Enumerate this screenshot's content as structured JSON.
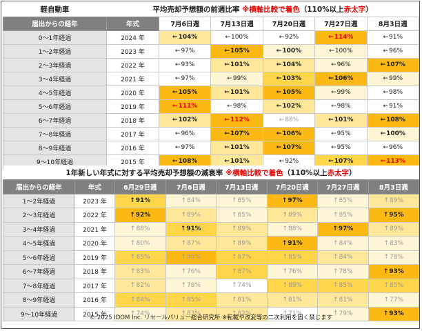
{
  "table1": {
    "title_main": "平均売却予想額の前週比率",
    "title_note": "※横軸比較で着色",
    "title_paren_open": "（110%以上",
    "title_red": "赤太字",
    "title_paren_close": "）",
    "corner_label": "軽自動車",
    "col_headers": [
      "届出からの経年",
      "年式"
    ],
    "weeks": [
      "7月6日週",
      "7月13日週",
      "7月20日週",
      "7月27日週",
      "8月3日週"
    ],
    "rows": [
      {
        "label": "0～1年経過",
        "year": "2024 年",
        "cells": [
          [
            "←",
            "104%",
            "c2",
            "b"
          ],
          [
            "←",
            "100%",
            "c0",
            ""
          ],
          [
            "←",
            "92%",
            "c0",
            ""
          ],
          [
            "←",
            "114%",
            "c4",
            "r"
          ],
          [
            "←",
            "91%",
            "c0",
            ""
          ]
        ]
      },
      {
        "label": "1～2年経過",
        "year": "2023 年",
        "cells": [
          [
            "←",
            "97%",
            "c0",
            ""
          ],
          [
            "←",
            "105%",
            "c4",
            "b"
          ],
          [
            "←",
            "100%",
            "c1",
            "b"
          ],
          [
            "←",
            "100%",
            "c1",
            ""
          ],
          [
            "←",
            "96%",
            "c0",
            ""
          ]
        ]
      },
      {
        "label": "2～3年経過",
        "year": "2022 年",
        "cells": [
          [
            "←",
            "93%",
            "c0",
            ""
          ],
          [
            "←",
            "101%",
            "c2",
            "b"
          ],
          [
            "←",
            "104%",
            "c2",
            "b"
          ],
          [
            "←",
            "96%",
            "c1",
            ""
          ],
          [
            "←",
            "107%",
            "c4",
            "b"
          ]
        ]
      },
      {
        "label": "3～4年経過",
        "year": "2021 年",
        "cells": [
          [
            "←",
            "97%",
            "c0",
            ""
          ],
          [
            "←",
            "99%",
            "c1",
            ""
          ],
          [
            "←",
            "103%",
            "c3",
            "b"
          ],
          [
            "←",
            "106%",
            "c4",
            "b"
          ],
          [
            "←",
            "99%",
            "c1",
            ""
          ]
        ]
      },
      {
        "label": "4～5年経過",
        "year": "2020 年",
        "cells": [
          [
            "←",
            "105%",
            "c4",
            "b"
          ],
          [
            "←",
            "101%",
            "c2",
            "b"
          ],
          [
            "←",
            "105%",
            "c4",
            "b"
          ],
          [
            "←",
            "99%",
            "c1",
            ""
          ],
          [
            "←",
            "98%",
            "c0",
            ""
          ]
        ]
      },
      {
        "label": "5～6年経過",
        "year": "2019 年",
        "cells": [
          [
            "←",
            "111%",
            "c4",
            "r"
          ],
          [
            "←",
            "98%",
            "c0",
            ""
          ],
          [
            "←",
            "102%",
            "c2",
            "b"
          ],
          [
            "←",
            "98%",
            "c0",
            ""
          ],
          [
            "←",
            "91%",
            "c0",
            ""
          ]
        ]
      },
      {
        "label": "6～7年経過",
        "year": "2018 年",
        "cells": [
          [
            "←",
            "102%",
            "c2",
            "b"
          ],
          [
            "←",
            "112%",
            "c4",
            "r"
          ],
          [
            "←",
            "88%",
            "c0",
            "g"
          ],
          [
            "←",
            "101%",
            "c2",
            "b"
          ],
          [
            "←",
            "108%",
            "c4",
            "b"
          ]
        ]
      },
      {
        "label": "7～8年経過",
        "year": "2017 年",
        "cells": [
          [
            "←",
            "96%",
            "c0",
            ""
          ],
          [
            "←",
            "107%",
            "c4",
            "b"
          ],
          [
            "←",
            "106%",
            "c4",
            "b"
          ],
          [
            "←",
            "95%",
            "c0",
            ""
          ],
          [
            "←",
            "100%",
            "c1",
            "b"
          ]
        ]
      },
      {
        "label": "8～9年経過",
        "year": "2016 年",
        "cells": [
          [
            "←",
            "97%",
            "c0",
            ""
          ],
          [
            "←",
            "101%",
            "c2",
            "b"
          ],
          [
            "←",
            "107%",
            "c4",
            "b"
          ],
          [
            "←",
            "95%",
            "c0",
            ""
          ],
          [
            "←",
            "96%",
            "c0",
            ""
          ]
        ]
      },
      {
        "label": "9～10年経過",
        "year": "2015 年",
        "cells": [
          [
            "←",
            "108%",
            "c4",
            "b"
          ],
          [
            "←",
            "101%",
            "c2",
            "b"
          ],
          [
            "←",
            "92%",
            "c0",
            ""
          ],
          [
            "←",
            "107%",
            "c3",
            "b"
          ],
          [
            "←",
            "113%",
            "c4",
            "r"
          ]
        ]
      }
    ]
  },
  "table2": {
    "title_main": "1年新しい年式に対する平均売却予想額の減衰率",
    "title_note": "※横軸比較で着色",
    "title_paren_open": "（110%以上",
    "title_red": "赤太字",
    "title_paren_close": "）",
    "col_headers": [
      "届出からの経年",
      "年式"
    ],
    "weeks": [
      "6月29日週",
      "7月6日週",
      "7月13日週",
      "7月20日週",
      "7月27日週",
      "8月3日週"
    ],
    "rows": [
      {
        "label": "1～2年経過",
        "year": "2023 年",
        "cells": [
          [
            "↑",
            "91%",
            "c3",
            "b"
          ],
          [
            "↑",
            "84%",
            "c1",
            "g"
          ],
          [
            "↑",
            "85%",
            "c1",
            "g"
          ],
          [
            "↑",
            "97%",
            "c4",
            "b"
          ],
          [
            "↑",
            "85%",
            "c1",
            "g"
          ],
          [
            "↑",
            "89%",
            "c2",
            "g"
          ]
        ]
      },
      {
        "label": "2～3年経過",
        "year": "2022 年",
        "cells": [
          [
            "↑",
            "92%",
            "c4",
            "b"
          ],
          [
            "↑",
            "89%",
            "c2",
            "g"
          ],
          [
            "↑",
            "85%",
            "c1",
            "g"
          ],
          [
            "↑",
            "89%",
            "c2",
            "g"
          ],
          [
            "↑",
            "85%",
            "c1",
            "g"
          ],
          [
            "↑",
            "95%",
            "c4",
            "b"
          ]
        ]
      },
      {
        "label": "3～4年経過",
        "year": "2021 年",
        "cells": [
          [
            "↑",
            "88%",
            "c1",
            "g"
          ],
          [
            "↑",
            "91%",
            "c3",
            "b"
          ],
          [
            "↑",
            "89%",
            "c2",
            "g"
          ],
          [
            "↑",
            "88%",
            "c1",
            "g"
          ],
          [
            "↑",
            "97%",
            "c4",
            "b"
          ],
          [
            "↑",
            "89%",
            "c2",
            "g"
          ]
        ]
      },
      {
        "label": "4～5年経過",
        "year": "2020 年",
        "cells": [
          [
            "↑",
            "80%",
            "c1",
            "g"
          ],
          [
            "↑",
            "87%",
            "c2",
            "g"
          ],
          [
            "↑",
            "89%",
            "c2",
            "g"
          ],
          [
            "↑",
            "91%",
            "c4",
            "b"
          ],
          [
            "↑",
            "84%",
            "c1",
            "g"
          ],
          [
            "↑",
            "83%",
            "c1",
            "g"
          ]
        ]
      },
      {
        "label": "5～6年経過",
        "year": "2019 年",
        "cells": [
          [
            "↑",
            "85%",
            "c3",
            "g"
          ],
          [
            "↑",
            "90%",
            "c4",
            "g"
          ],
          [
            "↑",
            "87%",
            "c3",
            "g"
          ],
          [
            "↑",
            "85%",
            "c3",
            "g"
          ],
          [
            "↑",
            "84%",
            "c2",
            "g"
          ],
          [
            "↑",
            "78%",
            "c1",
            "g"
          ]
        ]
      },
      {
        "label": "6～7年経過",
        "year": "2018 年",
        "cells": [
          [
            "↑",
            "83%",
            "c2",
            "g"
          ],
          [
            "↑",
            "76%",
            "c1",
            "g"
          ],
          [
            "↑",
            "87%",
            "c3",
            "g"
          ],
          [
            "↑",
            "76%",
            "c1",
            "g"
          ],
          [
            "↑",
            "78%",
            "c1",
            "g"
          ],
          [
            "↑",
            "93%",
            "c4",
            "b"
          ]
        ]
      },
      {
        "label": "7～8年経過",
        "year": "2017 年",
        "cells": [
          [
            "↑",
            "82%",
            "c2",
            "g"
          ],
          [
            "↑",
            "78%",
            "c1",
            "g"
          ],
          [
            "↑",
            "74%",
            "c0",
            "g"
          ],
          [
            "↑",
            "89%",
            "c3",
            "g"
          ],
          [
            "↑",
            "85%",
            "c3",
            "g"
          ],
          [
            "↑",
            "85%",
            "c3",
            "g"
          ]
        ]
      },
      {
        "label": "8～9年経過",
        "year": "2016 年",
        "cells": [
          [
            "↑",
            "84%",
            "c3",
            "g"
          ],
          [
            "↑",
            "85%",
            "c3",
            "g"
          ],
          [
            "↑",
            "81%",
            "c2",
            "g"
          ],
          [
            "↑",
            "81%",
            "c2",
            "g"
          ],
          [
            "↑",
            "81%",
            "c2",
            "g"
          ],
          [
            "↑",
            "77%",
            "c1",
            "g"
          ]
        ]
      },
      {
        "label": "9～10年経過",
        "year": "2015 年",
        "cells": [
          [
            "↑",
            "74%",
            "c1",
            "g"
          ],
          [
            "↑",
            "83%",
            "c2",
            "g"
          ],
          [
            "↑",
            "82%",
            "c2",
            "g"
          ],
          [
            "↑",
            "71%",
            "c0",
            "g"
          ],
          [
            "↑",
            "79%",
            "c1",
            "g"
          ],
          [
            "↑",
            "93%",
            "c4",
            "b"
          ]
        ]
      }
    ]
  },
  "footer": "© 2025 IDOM Inc. リセールバリュー総合研究所 ※転載や改変等の二次利用を固く禁じます"
}
